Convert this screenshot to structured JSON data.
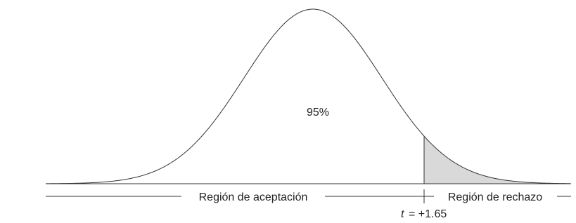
{
  "labels": {
    "percent": "95%",
    "acceptance": "Región de aceptación",
    "rejection": "Región de rechazo",
    "t_symbol": "t",
    "t_value": "= +1.65"
  }
}
